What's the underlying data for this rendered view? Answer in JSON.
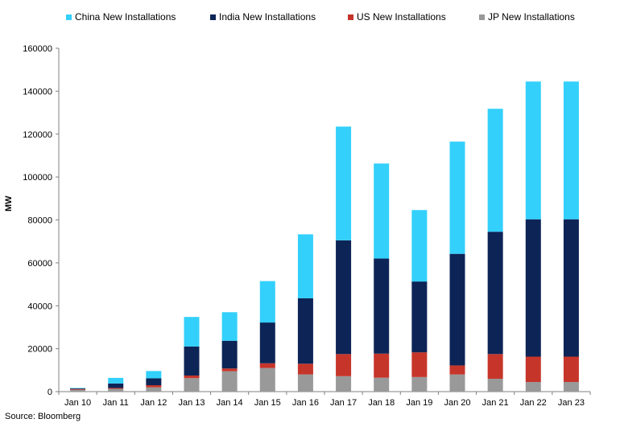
{
  "chart_data": {
    "type": "bar",
    "stacked": true,
    "categories": [
      "Jan 10",
      "Jan 11",
      "Jan 12",
      "Jan 13",
      "Jan 14",
      "Jan 15",
      "Jan 16",
      "Jan 17",
      "Jan 18",
      "Jan 19",
      "Jan 20",
      "Jan 21",
      "Jan 22",
      "Jan 23"
    ],
    "series": [
      {
        "name": "JP New Installations",
        "color": "#999999",
        "values": [
          900,
          1300,
          2000,
          6300,
          9500,
          11000,
          8000,
          7200,
          6500,
          6800,
          8000,
          6000,
          4500,
          4500
        ]
      },
      {
        "name": "US New Installations",
        "color": "#c6352a",
        "values": [
          300,
          400,
          1000,
          1200,
          1300,
          2200,
          5000,
          10300,
          11200,
          11500,
          4200,
          11500,
          11800,
          11800
        ]
      },
      {
        "name": "India New Installations",
        "color": "#0d2456",
        "values": [
          300,
          2100,
          3200,
          13500,
          12900,
          19000,
          30500,
          53000,
          44300,
          33000,
          52000,
          57000,
          64000,
          64000
        ]
      },
      {
        "name": "China New Installations",
        "color": "#33d0fb",
        "values": [
          200,
          2600,
          3400,
          13800,
          13300,
          19300,
          29800,
          53000,
          44300,
          33300,
          52300,
          57300,
          64200,
          64200
        ]
      }
    ],
    "legend_order": [
      "China New Installations",
      "India New Installations",
      "US New Installations",
      "JP New Installations"
    ],
    "ylabel": "MW",
    "xlabel": "",
    "ylim": [
      0,
      160000
    ],
    "yticks": [
      0,
      20000,
      40000,
      60000,
      80000,
      100000,
      120000,
      140000,
      160000
    ],
    "ytick_labels": [
      "0",
      "20000",
      "40000",
      "60000",
      "80000",
      "100000",
      "120000",
      "140000",
      "160000"
    ],
    "grid": false,
    "legend_position": "top"
  },
  "source": "Source: Bloomberg"
}
